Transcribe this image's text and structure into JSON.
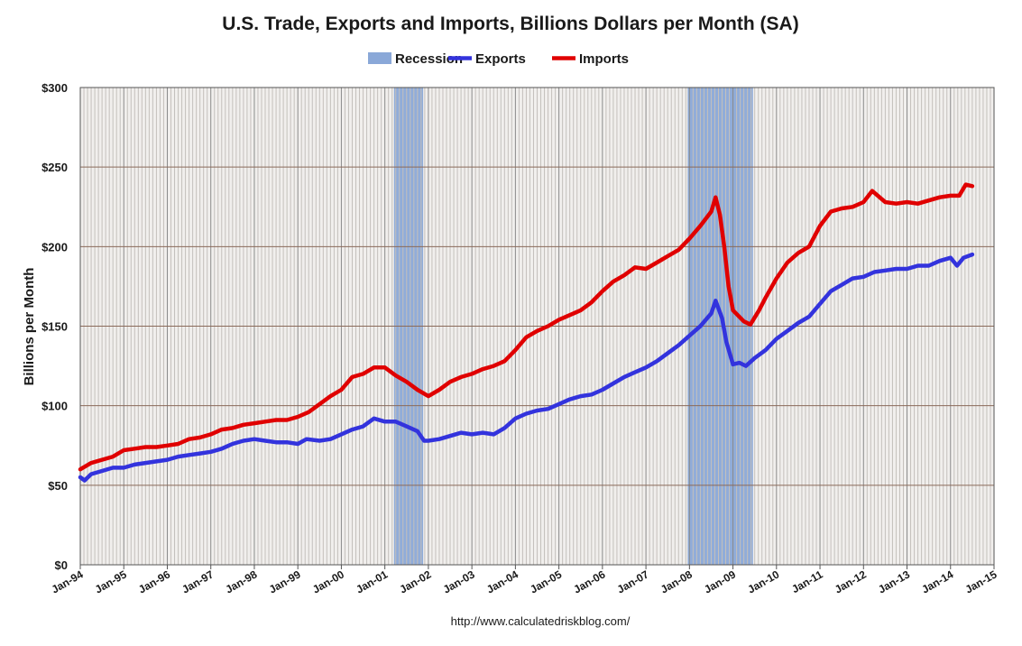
{
  "chart_data": {
    "type": "line",
    "title": "U.S. Trade, Exports and Imports, Billions Dollars per Month (SA)",
    "ylabel": "Billions per Month",
    "source": "http://www.calculatedriskblog.com/",
    "ylim": [
      0,
      300
    ],
    "xlim": [
      1994.0,
      2015.0
    ],
    "y_ticks": [
      0,
      50,
      100,
      150,
      200,
      250,
      300
    ],
    "y_tick_labels": [
      "$0",
      "$50",
      "$100",
      "$150",
      "$200",
      "$250",
      "$300"
    ],
    "x_ticks": [
      1994,
      1995,
      1996,
      1997,
      1998,
      1999,
      2000,
      2001,
      2002,
      2003,
      2004,
      2005,
      2006,
      2007,
      2008,
      2009,
      2010,
      2011,
      2012,
      2013,
      2014,
      2015
    ],
    "x_tick_labels": [
      "Jan-94",
      "Jan-95",
      "Jan-96",
      "Jan-97",
      "Jan-98",
      "Jan-99",
      "Jan-00",
      "Jan-01",
      "Jan-02",
      "Jan-03",
      "Jan-04",
      "Jan-05",
      "Jan-06",
      "Jan-07",
      "Jan-08",
      "Jan-09",
      "Jan-10",
      "Jan-11",
      "Jan-12",
      "Jan-13",
      "Jan-14",
      "Jan-15"
    ],
    "grid": {
      "horizontal": true,
      "vertical_monthly": true
    },
    "legend": {
      "placement": "top-center",
      "entries": [
        {
          "label": "Recession",
          "color": "#8aa8d8",
          "kind": "box"
        },
        {
          "label": "Exports",
          "color": "#3333dd",
          "kind": "line"
        },
        {
          "label": "Imports",
          "color": "#e00000",
          "kind": "line"
        }
      ]
    },
    "recessions": [
      {
        "start": 2001.21,
        "end": 2001.88
      },
      {
        "start": 2007.96,
        "end": 2009.46
      }
    ],
    "series": [
      {
        "name": "Exports",
        "color": "#3333dd",
        "points": [
          [
            1994.0,
            55
          ],
          [
            1994.1,
            53
          ],
          [
            1994.25,
            57
          ],
          [
            1994.5,
            59
          ],
          [
            1994.75,
            61
          ],
          [
            1995.0,
            61
          ],
          [
            1995.25,
            63
          ],
          [
            1995.5,
            64
          ],
          [
            1995.75,
            65
          ],
          [
            1996.0,
            66
          ],
          [
            1996.25,
            68
          ],
          [
            1996.5,
            69
          ],
          [
            1996.75,
            70
          ],
          [
            1997.0,
            71
          ],
          [
            1997.25,
            73
          ],
          [
            1997.5,
            76
          ],
          [
            1997.75,
            78
          ],
          [
            1998.0,
            79
          ],
          [
            1998.25,
            78
          ],
          [
            1998.5,
            77
          ],
          [
            1998.75,
            77
          ],
          [
            1999.0,
            76
          ],
          [
            1999.2,
            79
          ],
          [
            1999.5,
            78
          ],
          [
            1999.75,
            79
          ],
          [
            2000.0,
            82
          ],
          [
            2000.25,
            85
          ],
          [
            2000.5,
            87
          ],
          [
            2000.75,
            92
          ],
          [
            2001.0,
            90
          ],
          [
            2001.25,
            90
          ],
          [
            2001.5,
            87
          ],
          [
            2001.75,
            84
          ],
          [
            2001.9,
            78
          ],
          [
            2002.0,
            78
          ],
          [
            2002.25,
            79
          ],
          [
            2002.5,
            81
          ],
          [
            2002.75,
            83
          ],
          [
            2003.0,
            82
          ],
          [
            2003.25,
            83
          ],
          [
            2003.5,
            82
          ],
          [
            2003.75,
            86
          ],
          [
            2004.0,
            92
          ],
          [
            2004.25,
            95
          ],
          [
            2004.5,
            97
          ],
          [
            2004.75,
            98
          ],
          [
            2005.0,
            101
          ],
          [
            2005.25,
            104
          ],
          [
            2005.5,
            106
          ],
          [
            2005.75,
            107
          ],
          [
            2006.0,
            110
          ],
          [
            2006.25,
            114
          ],
          [
            2006.5,
            118
          ],
          [
            2006.75,
            121
          ],
          [
            2007.0,
            124
          ],
          [
            2007.25,
            128
          ],
          [
            2007.5,
            133
          ],
          [
            2007.75,
            138
          ],
          [
            2008.0,
            144
          ],
          [
            2008.25,
            150
          ],
          [
            2008.5,
            158
          ],
          [
            2008.6,
            166
          ],
          [
            2008.75,
            155
          ],
          [
            2008.85,
            140
          ],
          [
            2009.0,
            126
          ],
          [
            2009.15,
            127
          ],
          [
            2009.3,
            125
          ],
          [
            2009.5,
            130
          ],
          [
            2009.75,
            135
          ],
          [
            2010.0,
            142
          ],
          [
            2010.25,
            147
          ],
          [
            2010.5,
            152
          ],
          [
            2010.75,
            156
          ],
          [
            2011.0,
            164
          ],
          [
            2011.25,
            172
          ],
          [
            2011.5,
            176
          ],
          [
            2011.75,
            180
          ],
          [
            2012.0,
            181
          ],
          [
            2012.25,
            184
          ],
          [
            2012.5,
            185
          ],
          [
            2012.75,
            186
          ],
          [
            2013.0,
            186
          ],
          [
            2013.25,
            188
          ],
          [
            2013.5,
            188
          ],
          [
            2013.75,
            191
          ],
          [
            2014.0,
            193
          ],
          [
            2014.15,
            188
          ],
          [
            2014.3,
            193
          ],
          [
            2014.5,
            195
          ]
        ]
      },
      {
        "name": "Imports",
        "color": "#e00000",
        "points": [
          [
            1994.0,
            60
          ],
          [
            1994.25,
            64
          ],
          [
            1994.5,
            66
          ],
          [
            1994.75,
            68
          ],
          [
            1995.0,
            72
          ],
          [
            1995.25,
            73
          ],
          [
            1995.5,
            74
          ],
          [
            1995.75,
            74
          ],
          [
            1996.0,
            75
          ],
          [
            1996.25,
            76
          ],
          [
            1996.5,
            79
          ],
          [
            1996.75,
            80
          ],
          [
            1997.0,
            82
          ],
          [
            1997.25,
            85
          ],
          [
            1997.5,
            86
          ],
          [
            1997.75,
            88
          ],
          [
            1998.0,
            89
          ],
          [
            1998.25,
            90
          ],
          [
            1998.5,
            91
          ],
          [
            1998.75,
            91
          ],
          [
            1999.0,
            93
          ],
          [
            1999.25,
            96
          ],
          [
            1999.5,
            101
          ],
          [
            1999.75,
            106
          ],
          [
            2000.0,
            110
          ],
          [
            2000.25,
            118
          ],
          [
            2000.5,
            120
          ],
          [
            2000.75,
            124
          ],
          [
            2001.0,
            124
          ],
          [
            2001.25,
            119
          ],
          [
            2001.5,
            115
          ],
          [
            2001.75,
            110
          ],
          [
            2002.0,
            106
          ],
          [
            2002.25,
            110
          ],
          [
            2002.5,
            115
          ],
          [
            2002.75,
            118
          ],
          [
            2003.0,
            120
          ],
          [
            2003.25,
            123
          ],
          [
            2003.5,
            125
          ],
          [
            2003.75,
            128
          ],
          [
            2004.0,
            135
          ],
          [
            2004.25,
            143
          ],
          [
            2004.5,
            147
          ],
          [
            2004.75,
            150
          ],
          [
            2005.0,
            154
          ],
          [
            2005.25,
            157
          ],
          [
            2005.5,
            160
          ],
          [
            2005.75,
            165
          ],
          [
            2006.0,
            172
          ],
          [
            2006.25,
            178
          ],
          [
            2006.5,
            182
          ],
          [
            2006.75,
            187
          ],
          [
            2007.0,
            186
          ],
          [
            2007.25,
            190
          ],
          [
            2007.5,
            194
          ],
          [
            2007.75,
            198
          ],
          [
            2008.0,
            205
          ],
          [
            2008.25,
            213
          ],
          [
            2008.5,
            222
          ],
          [
            2008.6,
            231
          ],
          [
            2008.7,
            220
          ],
          [
            2008.8,
            200
          ],
          [
            2008.9,
            175
          ],
          [
            2009.0,
            160
          ],
          [
            2009.25,
            153
          ],
          [
            2009.4,
            151
          ],
          [
            2009.6,
            160
          ],
          [
            2009.75,
            168
          ],
          [
            2010.0,
            180
          ],
          [
            2010.25,
            190
          ],
          [
            2010.5,
            196
          ],
          [
            2010.75,
            200
          ],
          [
            2011.0,
            213
          ],
          [
            2011.25,
            222
          ],
          [
            2011.5,
            224
          ],
          [
            2011.75,
            225
          ],
          [
            2012.0,
            228
          ],
          [
            2012.2,
            235
          ],
          [
            2012.5,
            228
          ],
          [
            2012.75,
            227
          ],
          [
            2013.0,
            228
          ],
          [
            2013.25,
            227
          ],
          [
            2013.5,
            229
          ],
          [
            2013.75,
            231
          ],
          [
            2014.0,
            232
          ],
          [
            2014.2,
            232
          ],
          [
            2014.35,
            239
          ],
          [
            2014.5,
            238
          ]
        ]
      }
    ]
  }
}
